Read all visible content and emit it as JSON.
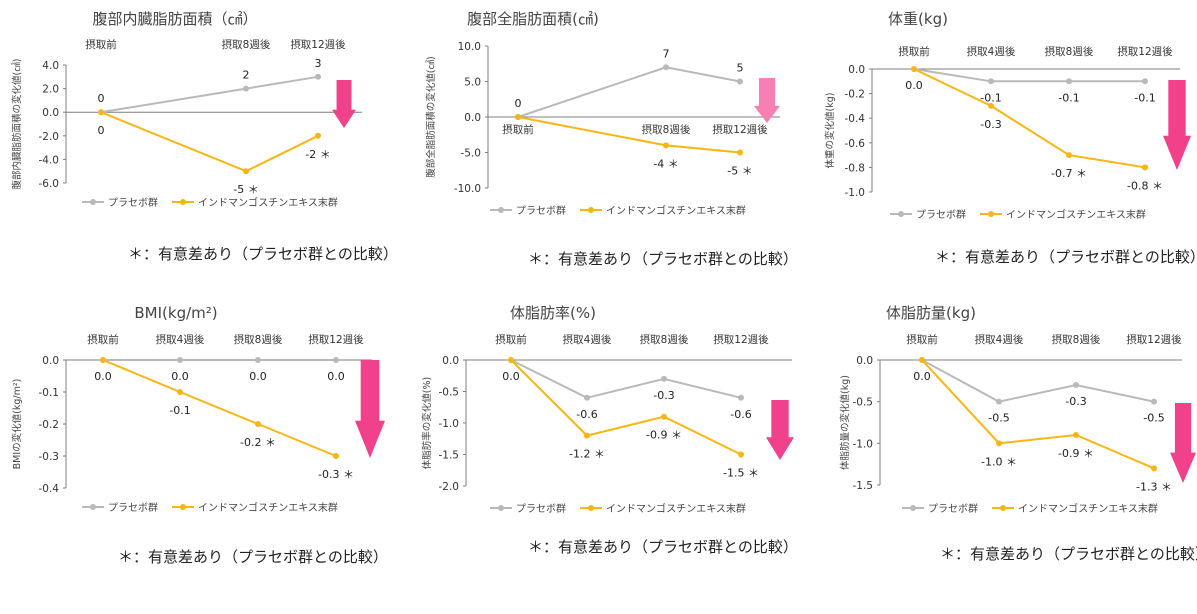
{
  "colors": {
    "placebo": "#b9b9b9",
    "treatment": "#f7b613",
    "arrow_dark": "#f0418a",
    "arrow_light": "#f77fb3",
    "axis": "#7f7f7f"
  },
  "legend": {
    "placebo": "プラセボ群",
    "treatment": "インドマンゴスチンエキス末群"
  },
  "chart_data": [
    {
      "type": "line",
      "title": "腹部内臓脂肪面積（㎠）",
      "ylabel": "腹部内臓脂肪面積の変化値(㎠)",
      "categories": [
        "摂取前",
        "摂取8週後",
        "摂取12週後"
      ],
      "x_axis_position": "top",
      "ylim": [
        -6.0,
        4.0
      ],
      "yticks": [
        "4.0",
        "2.0",
        "0.0",
        "-2.0",
        "-4.0",
        "-6.0"
      ],
      "series": [
        {
          "name": "プラセボ群",
          "values": [
            0,
            2,
            3
          ],
          "labels": [
            "0",
            "2",
            "3"
          ]
        },
        {
          "name": "インドマンゴスチンエキス末群",
          "values": [
            0,
            -5,
            -2
          ],
          "labels": [
            "0",
            "-5 ＊",
            "-2 ＊"
          ]
        }
      ],
      "arrow": "down, pink",
      "note": "＊：有意差あり（プラセボ群との比較）"
    },
    {
      "type": "line",
      "title": "腹部全脂肪面積(㎠)",
      "ylabel": "腹部全脂肪面積の変化値(㎠)",
      "categories": [
        "摂取前",
        "摂取8週後",
        "摂取12週後"
      ],
      "x_axis_position": "at zero",
      "ylim": [
        -10.0,
        10.0
      ],
      "yticks": [
        "10.0",
        "5.0",
        "0.0",
        "-5.0",
        "-10.0"
      ],
      "series": [
        {
          "name": "プラセボ群",
          "values": [
            0,
            7,
            5
          ],
          "labels": [
            "0",
            "7",
            "5"
          ]
        },
        {
          "name": "インドマンゴスチンエキス末群",
          "values": [
            0,
            -4,
            -5
          ],
          "labels": [
            "",
            "-4 ＊",
            "-5 ＊"
          ]
        }
      ],
      "arrow": "down, light pink",
      "note": "＊：有意差あり（プラセボ群との比較）"
    },
    {
      "type": "line",
      "title": "体重(kg)",
      "ylabel": "体重の変化値(kg)",
      "categories": [
        "摂取前",
        "摂取4週後",
        "摂取8週後",
        "摂取12週後"
      ],
      "x_axis_position": "top",
      "ylim": [
        -1.0,
        0.0
      ],
      "yticks": [
        "0.0",
        "-0.2",
        "-0.4",
        "-0.6",
        "-0.8",
        "-1.0"
      ],
      "series": [
        {
          "name": "プラセボ群",
          "values": [
            0.0,
            -0.1,
            -0.1,
            -0.1
          ],
          "labels": [
            "0.0",
            "-0.1",
            "-0.1",
            "-0.1"
          ]
        },
        {
          "name": "インドマンゴスチンエキス末群",
          "values": [
            0.0,
            -0.3,
            -0.7,
            -0.8
          ],
          "labels": [
            "",
            "-0.3",
            "-0.7 ＊",
            "-0.8 ＊"
          ]
        }
      ],
      "arrow": "down, pink",
      "note": "＊：有意差あり（プラセボ群との比較）"
    },
    {
      "type": "line",
      "title": "BMI(kg/m²)",
      "ylabel": "BMIの変化値(kg/m²)",
      "categories": [
        "摂取前",
        "摂取4週後",
        "摂取8週後",
        "摂取12週後"
      ],
      "x_axis_position": "top",
      "ylim": [
        -0.4,
        0.0
      ],
      "yticks": [
        "0.0",
        "-0.1",
        "-0.2",
        "-0.3",
        "-0.4"
      ],
      "series": [
        {
          "name": "プラセボ群",
          "values": [
            0.0,
            0.0,
            0.0,
            0.0
          ],
          "labels": [
            "0.0",
            "0.0",
            "0.0",
            "0.0"
          ]
        },
        {
          "name": "インドマンゴスチンエキス末群",
          "values": [
            0.0,
            -0.1,
            -0.2,
            -0.3
          ],
          "labels": [
            "",
            "-0.1",
            "-0.2 ＊",
            "-0.3 ＊"
          ]
        }
      ],
      "arrow": "down, pink",
      "note": "＊：有意差あり（プラセボ群との比較）"
    },
    {
      "type": "line",
      "title": "体脂肪率(%)",
      "ylabel": "体脂肪率の変化値(%)",
      "categories": [
        "摂取前",
        "摂取4週後",
        "摂取8週後",
        "摂取12週後"
      ],
      "x_axis_position": "top",
      "ylim": [
        -2.0,
        0.0
      ],
      "yticks": [
        "0.0",
        "-0.5",
        "-1.0",
        "-1.5",
        "-2.0"
      ],
      "series": [
        {
          "name": "プラセボ群",
          "values": [
            0.0,
            -0.6,
            -0.3,
            -0.6
          ],
          "labels": [
            "0.0",
            "-0.6",
            "-0.3",
            "-0.6"
          ]
        },
        {
          "name": "インドマンゴスチンエキス末群",
          "values": [
            0.0,
            -1.2,
            -0.9,
            -1.5
          ],
          "labels": [
            "",
            "-1.2 ＊",
            "-0.9 ＊",
            "-1.5 ＊"
          ]
        }
      ],
      "arrow": "down, pink",
      "note": "＊：有意差あり（プラセボ群との比較）"
    },
    {
      "type": "line",
      "title": "体脂肪量(kg)",
      "ylabel": "体脂肪量の変化値(kg)",
      "categories": [
        "摂取前",
        "摂取4週後",
        "摂取8週後",
        "摂取12週後"
      ],
      "x_axis_position": "top",
      "ylim": [
        -1.5,
        0.0
      ],
      "yticks": [
        "0.0",
        "-0.5",
        "-1.0",
        "-1.5"
      ],
      "series": [
        {
          "name": "プラセボ群",
          "values": [
            0.0,
            -0.5,
            -0.3,
            -0.5
          ],
          "labels": [
            "0.0",
            "-0.5",
            "-0.3",
            "-0.5"
          ]
        },
        {
          "name": "インドマンゴスチンエキス末群",
          "values": [
            0.0,
            -1.0,
            -0.9,
            -1.3
          ],
          "labels": [
            "",
            "-1.0 ＊",
            "-0.9 ＊",
            "-1.3 ＊"
          ]
        }
      ],
      "arrow": "down, pink",
      "note": "＊：有意差あり（プラセボ群との比較）"
    }
  ]
}
